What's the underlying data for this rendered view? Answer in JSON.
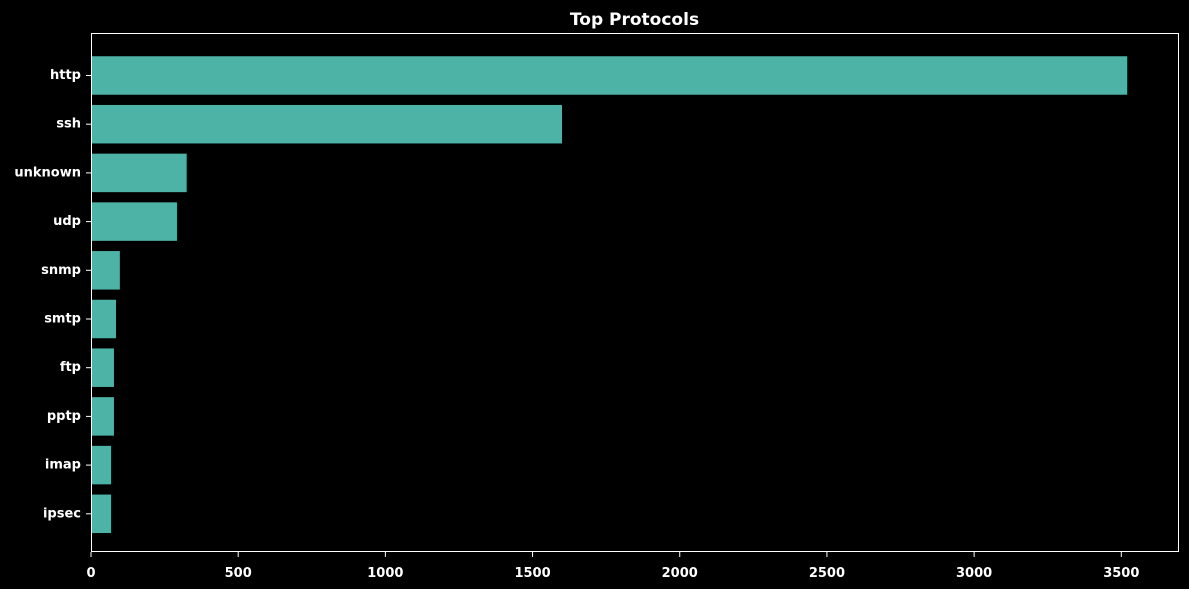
{
  "chart_data": {
    "type": "bar",
    "orientation": "horizontal",
    "title": "Top Protocols",
    "xlabel": "",
    "ylabel": "",
    "categories": [
      "http",
      "ssh",
      "unknown",
      "udp",
      "snmp",
      "smtp",
      "ftp",
      "pptp",
      "imap",
      "ipsec"
    ],
    "values": [
      3520,
      1600,
      325,
      292,
      98,
      85,
      78,
      78,
      68,
      68
    ],
    "xlim": [
      0,
      3696
    ],
    "xticks": [
      0,
      500,
      1000,
      1500,
      2000,
      2500,
      3000,
      3500
    ],
    "grid": false,
    "legend": "none",
    "colors": {
      "background": "#000000",
      "bar": "#4db3a6",
      "axis": "#ffffff",
      "text": "#ffffff"
    }
  }
}
